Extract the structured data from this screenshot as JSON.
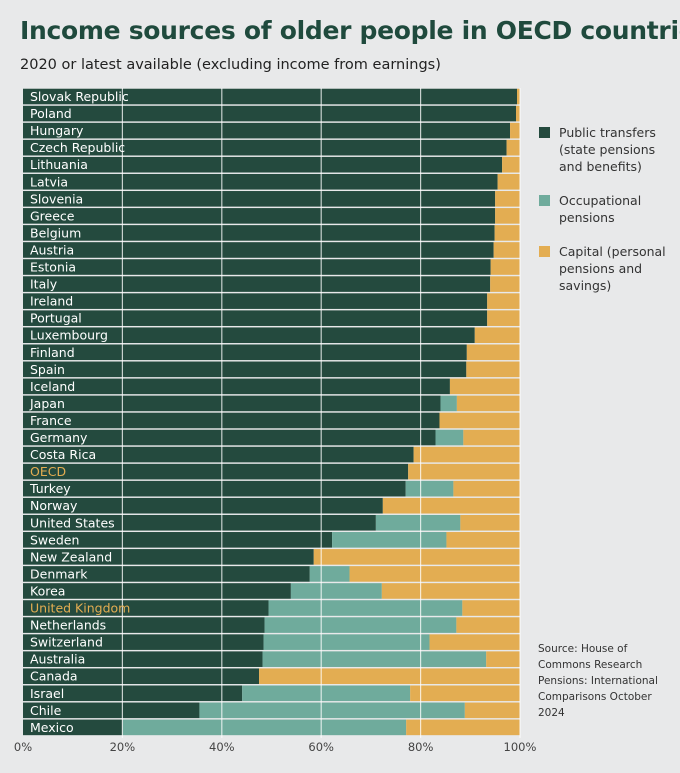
{
  "title": "Income sources of older people in OECD countries",
  "subtitle": "2020 or latest available (excluding income from earnings)",
  "legend": [
    {
      "name": "Public transfers (state pensions and benefits)",
      "color": "#244a3e"
    },
    {
      "name": "Occupational pensions",
      "color": "#6fab9c"
    },
    {
      "name": "Capital (personal pensions and savings)",
      "color": "#e3ad52"
    }
  ],
  "source": "Source: House of Commons Research Pensions: International Comparisons October 2024",
  "highlight_color": "#e3ad52",
  "chart_data": {
    "type": "bar",
    "orientation": "horizontal",
    "stacked": true,
    "xlim": [
      0,
      100
    ],
    "x_ticks": [
      "0%",
      "20%",
      "40%",
      "60%",
      "80%",
      "100%"
    ],
    "grid": true,
    "categories": [
      "Slovak Republic",
      "Poland",
      "Hungary",
      "Czech Republic",
      "Lithuania",
      "Latvia",
      "Slovenia",
      "Greece",
      "Belgium",
      "Austria",
      "Estonia",
      "Italy",
      "Ireland",
      "Portugal",
      "Luxembourg",
      "Finland",
      "Spain",
      "Iceland",
      "Japan",
      "France",
      "Germany",
      "Costa Rica",
      "OECD",
      "Turkey",
      "Norway",
      "United States",
      "Sweden",
      "New Zealand",
      "Denmark",
      "Korea",
      "United Kingdom",
      "Netherlands",
      "Switzerland",
      "Australia",
      "Canada",
      "Israel",
      "Chile",
      "Mexico"
    ],
    "highlighted": [
      "OECD",
      "United Kingdom"
    ],
    "series": [
      {
        "name": "Public transfers (state pensions and benefits)",
        "color": "#244a3e",
        "values": [
          99.4,
          99.2,
          98.0,
          97.3,
          96.4,
          95.5,
          95.0,
          95.0,
          94.9,
          94.7,
          94.1,
          94.0,
          93.4,
          93.4,
          90.9,
          89.3,
          89.2,
          85.9,
          84.0,
          83.8,
          83.0,
          78.6,
          77.5,
          77.0,
          72.4,
          71.0,
          62.2,
          58.5,
          57.7,
          53.9,
          49.4,
          48.6,
          48.4,
          48.2,
          47.5,
          44.1,
          35.5,
          20.0
        ]
      },
      {
        "name": "Occupational pensions",
        "color": "#6fab9c",
        "values": [
          0,
          0,
          0,
          0,
          0,
          0,
          0,
          0,
          0,
          0,
          0,
          0,
          0,
          0,
          0,
          0,
          0,
          0,
          3.3,
          0,
          5.6,
          0,
          0,
          9.6,
          0,
          17.0,
          23.0,
          0,
          8.0,
          18.3,
          39.0,
          38.6,
          33.4,
          45.0,
          0,
          33.8,
          53.4,
          57.1
        ]
      },
      {
        "name": "Capital (personal pensions and savings)",
        "color": "#e3ad52",
        "values": [
          0.6,
          0.8,
          2.0,
          2.7,
          3.6,
          4.5,
          5.0,
          5.0,
          5.1,
          5.3,
          5.9,
          6.0,
          6.6,
          6.6,
          9.1,
          10.7,
          10.8,
          14.1,
          12.7,
          16.2,
          11.4,
          21.4,
          22.5,
          13.4,
          27.6,
          12.0,
          14.8,
          41.5,
          34.3,
          27.8,
          11.6,
          12.8,
          18.2,
          6.8,
          52.5,
          22.1,
          11.1,
          22.9
        ]
      }
    ]
  }
}
